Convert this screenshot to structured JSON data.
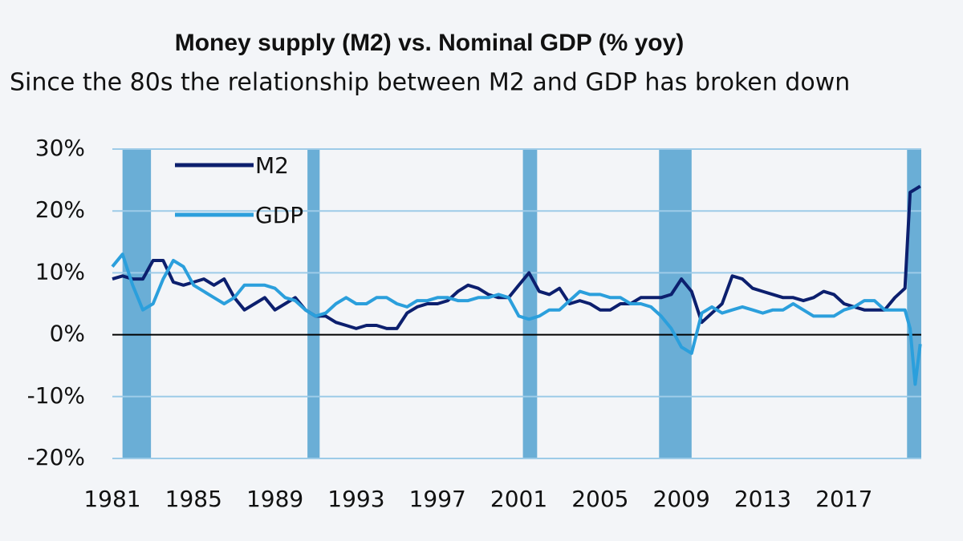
{
  "chart_data": {
    "type": "line",
    "title": "Money supply (M2) vs. Nominal GDP (% yoy)",
    "subtitle": "Since the 80s the relationship between M2 and GDP has broken down",
    "x": [
      1981,
      1981.5,
      1982,
      1982.5,
      1983,
      1983.5,
      1984,
      1984.5,
      1985,
      1985.5,
      1986,
      1986.5,
      1987,
      1987.5,
      1988,
      1988.5,
      1989,
      1989.5,
      1990,
      1990.5,
      1991,
      1991.5,
      1992,
      1992.5,
      1993,
      1993.5,
      1994,
      1994.5,
      1995,
      1995.5,
      1996,
      1996.5,
      1997,
      1997.5,
      1998,
      1998.5,
      1999,
      1999.5,
      2000,
      2000.5,
      2001,
      2001.5,
      2002,
      2002.5,
      2003,
      2003.5,
      2004,
      2004.5,
      2005,
      2005.5,
      2006,
      2006.5,
      2007,
      2007.5,
      2008,
      2008.5,
      2009,
      2009.5,
      2010,
      2010.5,
      2011,
      2011.5,
      2012,
      2012.5,
      2013,
      2013.5,
      2014,
      2014.5,
      2015,
      2015.5,
      2016,
      2016.5,
      2017,
      2017.5,
      2018,
      2018.5,
      2019,
      2019.5,
      2020,
      2020.25,
      2020.5,
      2020.75
    ],
    "series": [
      {
        "name": "M2",
        "color": "#0c1f6e",
        "values": [
          9,
          9.5,
          9,
          9,
          12,
          12,
          8.5,
          8,
          8.5,
          9,
          8,
          9,
          6,
          4,
          5,
          6,
          4,
          5,
          6,
          4,
          3,
          3,
          2,
          1.5,
          1,
          1.5,
          1.5,
          1,
          1,
          3.5,
          4.5,
          5,
          5,
          5.5,
          7,
          8,
          7.5,
          6.5,
          6,
          6,
          8,
          10,
          7,
          6.5,
          7.5,
          5,
          5.5,
          5,
          4,
          4,
          5,
          5,
          6,
          6,
          6,
          6.5,
          9,
          7,
          2,
          3.5,
          5,
          9.5,
          9,
          7.5,
          7,
          6.5,
          6,
          6,
          5.5,
          6,
          7,
          6.5,
          5,
          4.5,
          4,
          4,
          4,
          6,
          7.5,
          23,
          23.5,
          24
        ]
      },
      {
        "name": "GDP",
        "color": "#2b9fdc",
        "values": [
          11,
          13,
          8,
          4,
          5,
          9,
          12,
          11,
          8,
          7,
          6,
          5,
          6,
          8,
          8,
          8,
          7.5,
          6,
          5.5,
          4,
          3,
          3.5,
          5,
          6,
          5,
          5,
          6,
          6,
          5,
          4.5,
          5.5,
          5.5,
          6,
          6,
          5.5,
          5.5,
          6,
          6,
          6.5,
          6,
          3,
          2.5,
          3,
          4,
          4,
          5.5,
          7,
          6.5,
          6.5,
          6,
          6,
          5,
          5,
          4.5,
          3,
          1,
          -2,
          -3,
          3.5,
          4.5,
          3.5,
          4,
          4.5,
          4,
          3.5,
          4,
          4,
          5,
          4,
          3,
          3,
          3,
          4,
          4.5,
          5.5,
          5.5,
          4,
          4,
          4,
          1,
          -8,
          -1.5
        ]
      }
    ],
    "recessions": [
      [
        1981.5,
        1982.9
      ],
      [
        1990.6,
        1991.2
      ],
      [
        2001.2,
        2001.9
      ],
      [
        2007.9,
        2009.5
      ],
      [
        2020.1,
        2020.8
      ]
    ],
    "recession_color": "#6aaed6",
    "xlim": [
      1981,
      2020.8
    ],
    "xticks": [
      1981,
      1985,
      1989,
      1993,
      1997,
      2001,
      2005,
      2009,
      2013,
      2017
    ],
    "ylim": [
      -20,
      30
    ],
    "yticks": [
      {
        "value": -20,
        "label": "-20%"
      },
      {
        "value": -10,
        "label": "-10%"
      },
      {
        "value": 0,
        "label": "0%"
      },
      {
        "value": 10,
        "label": "10%"
      },
      {
        "value": 20,
        "label": "20%"
      },
      {
        "value": 30,
        "label": "30%"
      }
    ],
    "grid": true,
    "legend": "upper left"
  }
}
